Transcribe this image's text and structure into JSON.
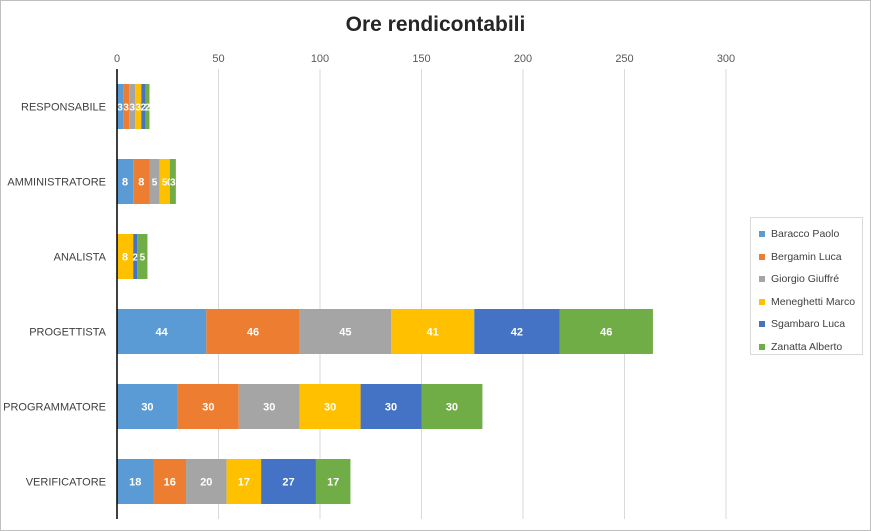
{
  "chart_data": {
    "type": "bar",
    "orientation": "horizontal",
    "stacked": true,
    "title": "Ore rendicontabili",
    "xlabel": "",
    "ylabel": "",
    "xlim": [
      0,
      300
    ],
    "xticks": [
      "0",
      "50",
      "100",
      "150",
      "200",
      "250",
      "300"
    ],
    "grid": true,
    "legend_position": "right",
    "categories": [
      "RESPONSABILE",
      "AMMINISTRATORE",
      "ANALISTA",
      "PROGETTISTA",
      "PROGRAMMATORE",
      "VERIFICATORE"
    ],
    "series": [
      {
        "name": "Baracco Paolo",
        "color": "#5b9bd5",
        "values": [
          3,
          8,
          0,
          44,
          30,
          18
        ]
      },
      {
        "name": "Bergamin Luca",
        "color": "#ed7d31",
        "values": [
          3,
          8,
          0,
          46,
          30,
          16
        ]
      },
      {
        "name": "Giorgio Giuffré",
        "color": "#a5a5a5",
        "values": [
          3,
          5,
          0,
          45,
          30,
          20
        ]
      },
      {
        "name": "Meneghetti Marco",
        "color": "#ffc000",
        "values": [
          3,
          5,
          8,
          41,
          30,
          17
        ]
      },
      {
        "name": "Sgambaro Luca",
        "color": "#4472c4",
        "values": [
          2,
          0,
          2,
          42,
          30,
          27
        ]
      },
      {
        "name": "Zanatta Alberto",
        "color": "#70ad47",
        "values": [
          2,
          3,
          5,
          46,
          30,
          17
        ]
      }
    ]
  }
}
